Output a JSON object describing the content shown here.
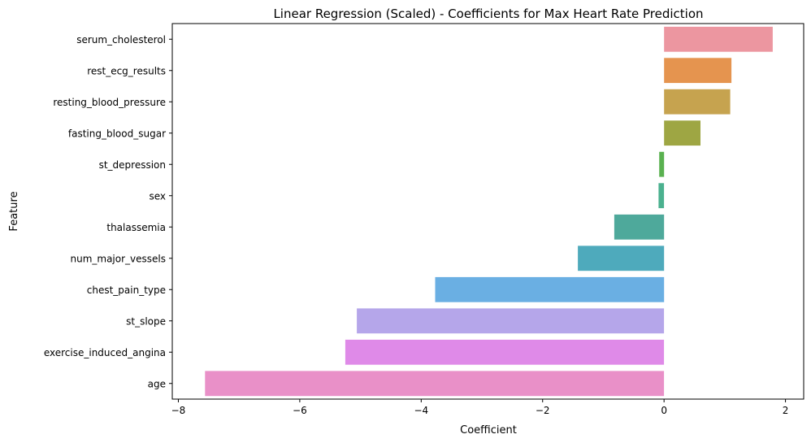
{
  "chart_data": {
    "type": "bar",
    "orientation": "horizontal",
    "title": "Linear Regression (Scaled) - Coefficients for Max Heart Rate Prediction",
    "xlabel": "Coefficient",
    "ylabel": "Feature",
    "xlim": [
      -8.1,
      2.3
    ],
    "xticks": [
      -8,
      -6,
      -4,
      -2,
      0,
      2
    ],
    "grid": false,
    "legend": "none",
    "categories": [
      "serum_cholesterol",
      "rest_ecg_results",
      "resting_blood_pressure",
      "fasting_blood_sugar",
      "st_depression",
      "sex",
      "thalassemia",
      "num_major_vessels",
      "chest_pain_type",
      "st_slope",
      "exercise_induced_angina",
      "age"
    ],
    "values": [
      1.79,
      1.11,
      1.09,
      0.6,
      -0.08,
      -0.09,
      -0.82,
      -1.42,
      -3.77,
      -5.06,
      -5.25,
      -7.56
    ],
    "colors": [
      "#ec96a0",
      "#e5944f",
      "#c6a34f",
      "#9ea643",
      "#5ab150",
      "#4bb18f",
      "#4ea99b",
      "#4eaabc",
      "#6aafe3",
      "#b5a6ea",
      "#df8ae8",
      "#e990c8"
    ]
  }
}
